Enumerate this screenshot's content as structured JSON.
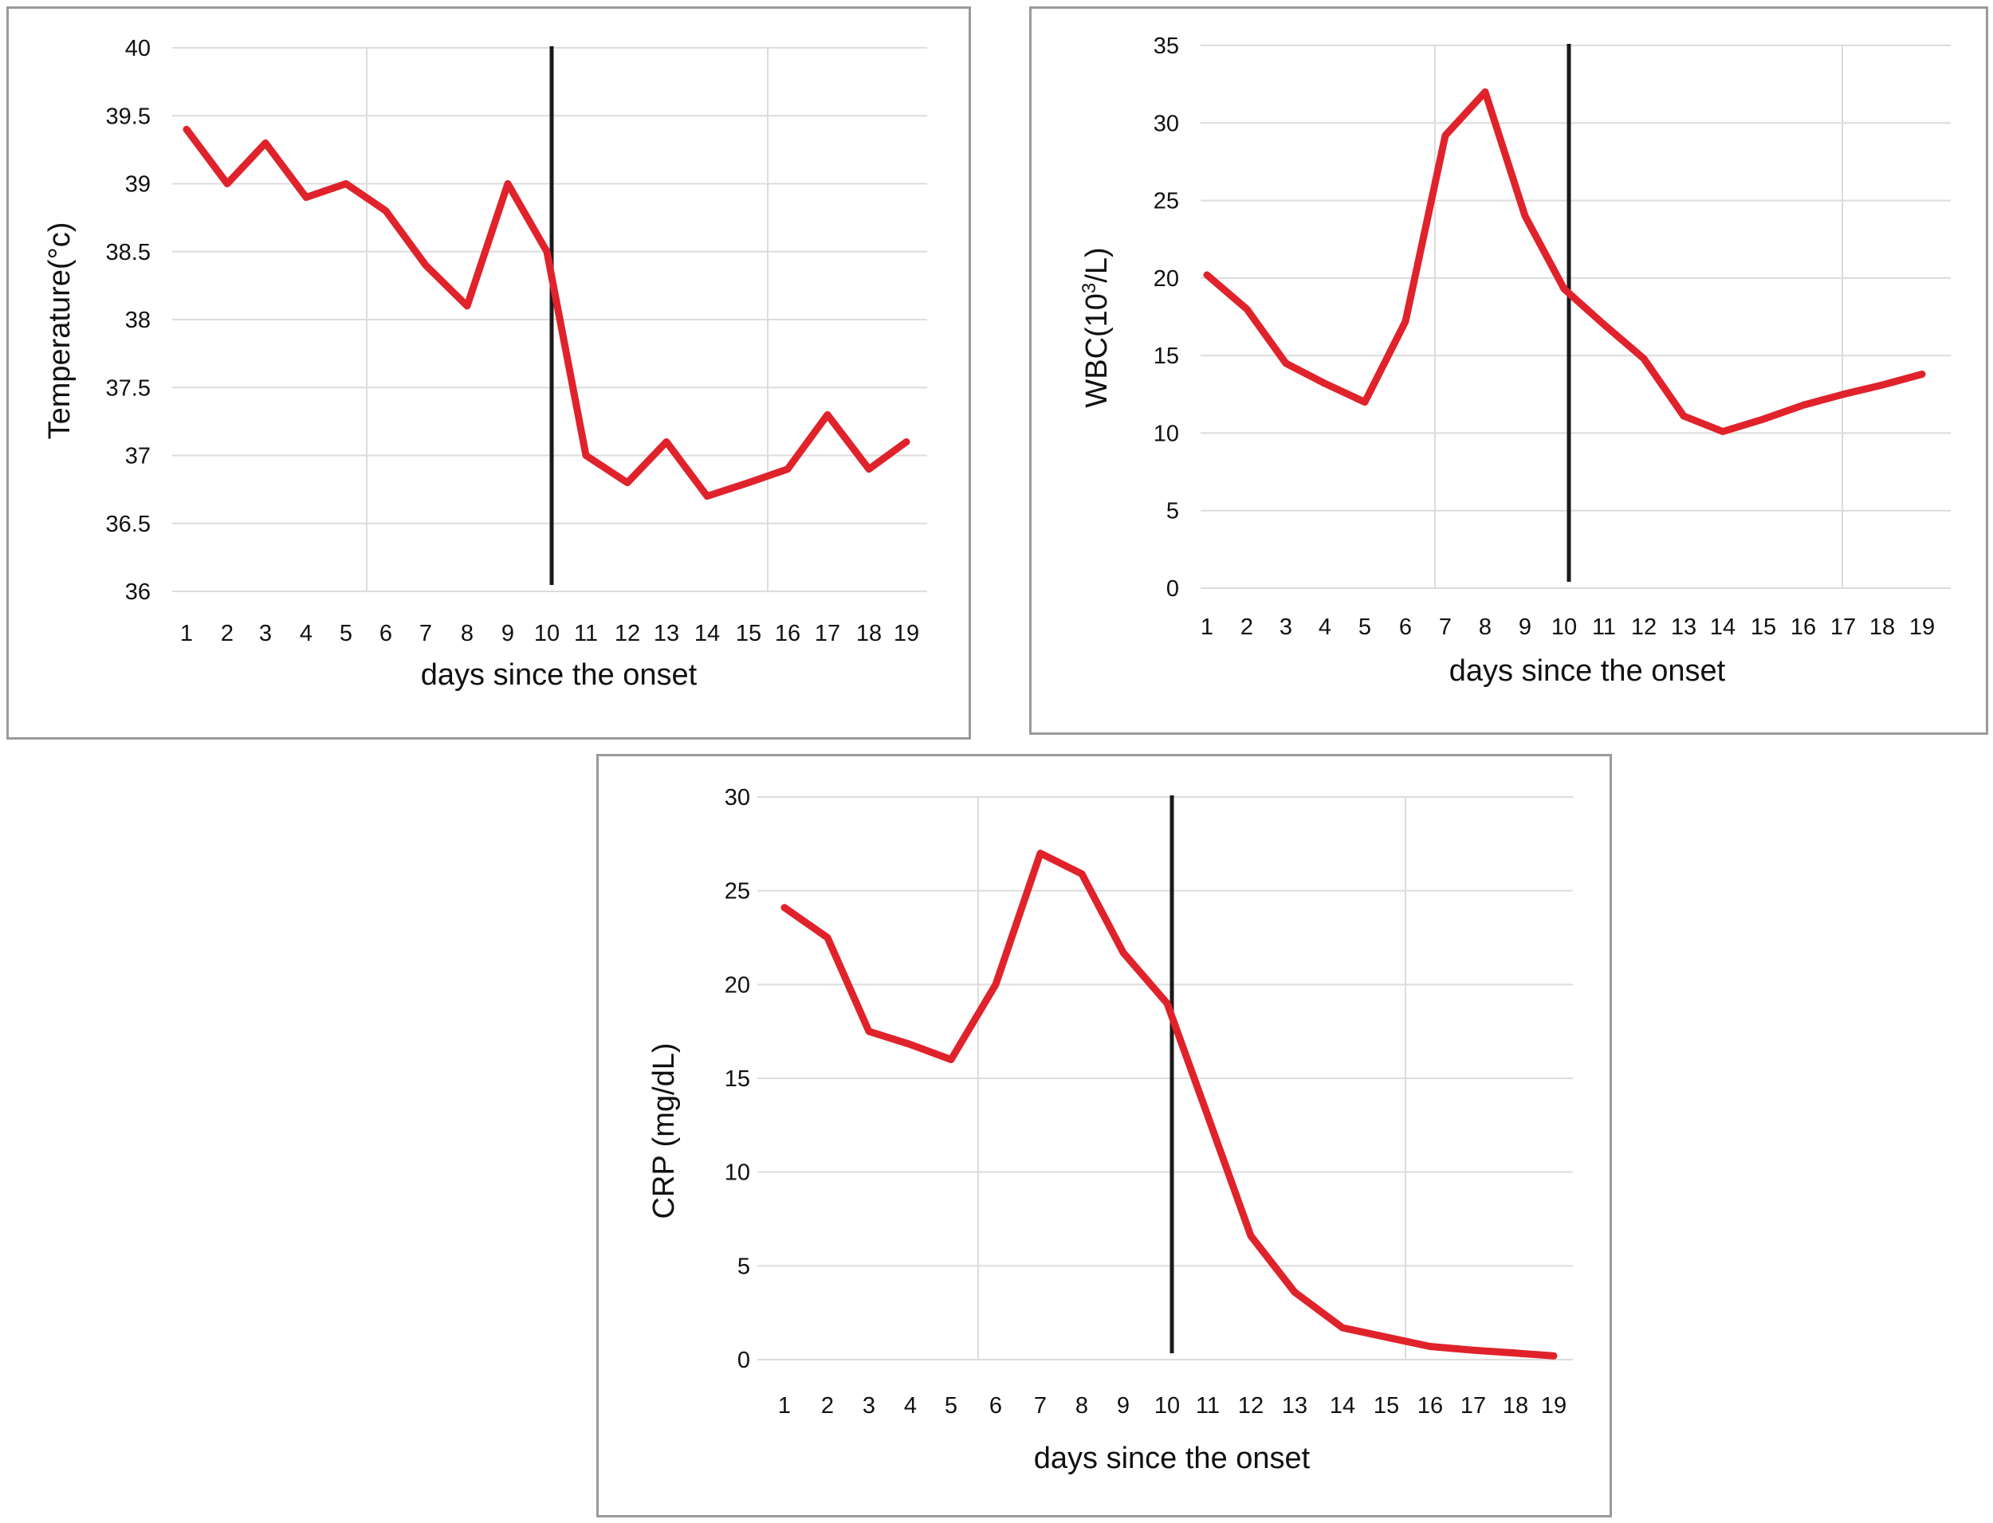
{
  "chart_data": [
    {
      "type": "line",
      "title": "",
      "xlabel": "days since the onset",
      "ylabel": "Temperature(°c)",
      "x": [
        1,
        2,
        3,
        4,
        5,
        6,
        7,
        8,
        9,
        10,
        11,
        12,
        13,
        14,
        15,
        16,
        17,
        18,
        19
      ],
      "series": [
        {
          "values": [
            39.4,
            39.0,
            39.3,
            38.9,
            39.0,
            38.8,
            38.4,
            38.1,
            39.0,
            38.5,
            37.0,
            36.8,
            37.1,
            36.7,
            36.8,
            36.9,
            37.3,
            36.9,
            37.1
          ]
        }
      ],
      "ylim": [
        36,
        40
      ],
      "yticks": [
        "36",
        "36.5",
        "37",
        "37.5",
        "38",
        "38.5",
        "39",
        "39.5",
        "40"
      ],
      "xticks": [
        "1",
        "2",
        "3",
        "4",
        "5",
        "6",
        "7",
        "8",
        "9",
        "10",
        "11",
        "12",
        "13",
        "14",
        "15",
        "16",
        "17",
        "18",
        "19"
      ],
      "vertical_marker_x": 10,
      "grid": true,
      "line_color": "#e0222b",
      "marker_color": "#1a1a1a"
    },
    {
      "type": "line",
      "title": "",
      "xlabel": "days since the onset",
      "ylabel_main": "WBC(10",
      "ylabel_sup": "3",
      "ylabel_tail": "/L)",
      "x": [
        1,
        2,
        3,
        4,
        5,
        6,
        7,
        8,
        9,
        10,
        11,
        12,
        13,
        14,
        15,
        16,
        17,
        18,
        19
      ],
      "series": [
        {
          "values": [
            20.2,
            18.0,
            14.5,
            13.2,
            12.0,
            17.2,
            29.2,
            32.0,
            24.0,
            19.3,
            17.0,
            14.8,
            11.1,
            10.1,
            10.9,
            11.8,
            12.5,
            13.1,
            13.8
          ]
        }
      ],
      "ylim": [
        0,
        35
      ],
      "yticks": [
        "0",
        "5",
        "10",
        "15",
        "20",
        "25",
        "30",
        "35"
      ],
      "xticks": [
        "1",
        "2",
        "3",
        "4",
        "5",
        "6",
        "7",
        "8",
        "9",
        "10",
        "11",
        "12",
        "13",
        "14",
        "15",
        "16",
        "17",
        "18",
        "19"
      ],
      "vertical_marker_x": 10,
      "grid": true,
      "line_color": "#e0222b",
      "marker_color": "#1a1a1a"
    },
    {
      "type": "line",
      "title": "",
      "xlabel": "days since the onset",
      "ylabel": "CRP (mg/dL)",
      "x": [
        1,
        2,
        3,
        4,
        5,
        6,
        7,
        8,
        9,
        10,
        11,
        12,
        13,
        14,
        15,
        16,
        17,
        18,
        19
      ],
      "series": [
        {
          "values": [
            24.1,
            22.5,
            17.5,
            16.8,
            16.0,
            20.0,
            27.0,
            25.9,
            21.7,
            19.0,
            13.0,
            6.6,
            3.6,
            1.7,
            1.2,
            0.7,
            0.5,
            0.35,
            0.2
          ]
        }
      ],
      "ylim": [
        0,
        30
      ],
      "yticks": [
        "0",
        "5",
        "10",
        "15",
        "20",
        "25",
        "30"
      ],
      "xticks": [
        "1",
        "2",
        "3",
        "4",
        "5",
        "6",
        "7",
        "8",
        "9",
        "10",
        "11",
        "12",
        "13",
        "14",
        "15",
        "16",
        "17",
        "18",
        "19"
      ],
      "vertical_marker_x": 10,
      "grid": true,
      "line_color": "#e0222b",
      "marker_color": "#1a1a1a"
    }
  ]
}
